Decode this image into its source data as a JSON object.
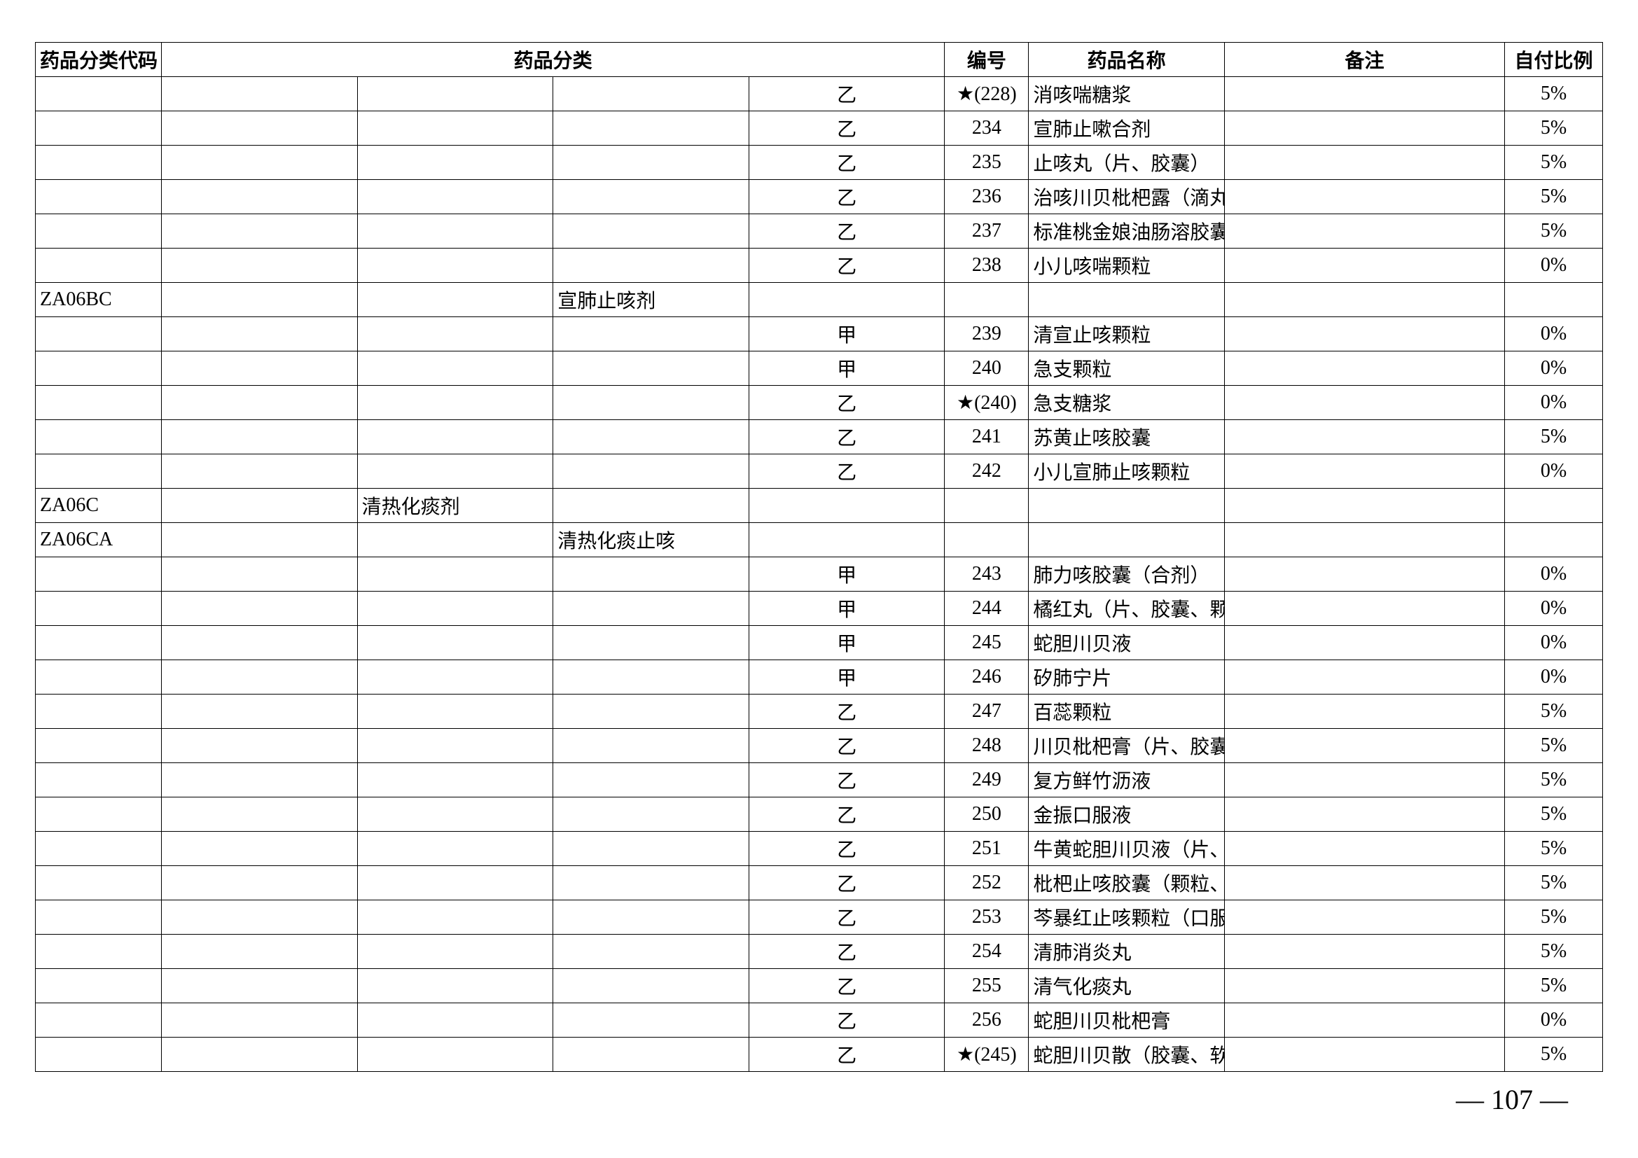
{
  "headers": {
    "code": "药品分类代码",
    "category": "药品分类",
    "number": "编号",
    "name": "药品名称",
    "note": "备注",
    "ratio": "自付比例"
  },
  "rows": [
    {
      "code": "",
      "cat1": "",
      "cat2": "",
      "cat3": "",
      "cat4": "乙",
      "num": "★(228)",
      "name": "消咳喘糖浆",
      "note": "",
      "ratio": "5%"
    },
    {
      "code": "",
      "cat1": "",
      "cat2": "",
      "cat3": "",
      "cat4": "乙",
      "num": "234",
      "name": "宣肺止嗽合剂",
      "note": "",
      "ratio": "5%"
    },
    {
      "code": "",
      "cat1": "",
      "cat2": "",
      "cat3": "",
      "cat4": "乙",
      "num": "235",
      "name": "止咳丸（片、胶囊）",
      "note": "",
      "ratio": "5%"
    },
    {
      "code": "",
      "cat1": "",
      "cat2": "",
      "cat3": "",
      "cat4": "乙",
      "num": "236",
      "name": "治咳川贝枇杷露（滴丸）",
      "note": "",
      "ratio": "5%"
    },
    {
      "code": "",
      "cat1": "",
      "cat2": "",
      "cat3": "",
      "cat4": "乙",
      "num": "237",
      "name": "标准桃金娘油肠溶胶囊",
      "note": "",
      "ratio": "5%"
    },
    {
      "code": "",
      "cat1": "",
      "cat2": "",
      "cat3": "",
      "cat4": "乙",
      "num": "238",
      "name": "小儿咳喘颗粒",
      "note": "",
      "ratio": "0%"
    },
    {
      "code": "ZA06BC",
      "cat1": "",
      "cat2": "",
      "cat3": "宣肺止咳剂",
      "cat4": "",
      "num": "",
      "name": "",
      "note": "",
      "ratio": ""
    },
    {
      "code": "",
      "cat1": "",
      "cat2": "",
      "cat3": "",
      "cat4": "甲",
      "num": "239",
      "name": "清宣止咳颗粒",
      "note": "",
      "ratio": "0%"
    },
    {
      "code": "",
      "cat1": "",
      "cat2": "",
      "cat3": "",
      "cat4": "甲",
      "num": "240",
      "name": "急支颗粒",
      "note": "",
      "ratio": "0%"
    },
    {
      "code": "",
      "cat1": "",
      "cat2": "",
      "cat3": "",
      "cat4": "乙",
      "num": "★(240)",
      "name": "急支糖浆",
      "note": "",
      "ratio": "0%"
    },
    {
      "code": "",
      "cat1": "",
      "cat2": "",
      "cat3": "",
      "cat4": "乙",
      "num": "241",
      "name": "苏黄止咳胶囊",
      "note": "",
      "ratio": "5%"
    },
    {
      "code": "",
      "cat1": "",
      "cat2": "",
      "cat3": "",
      "cat4": "乙",
      "num": "242",
      "name": "小儿宣肺止咳颗粒",
      "note": "",
      "ratio": "0%"
    },
    {
      "code": "ZA06C",
      "cat1": "",
      "cat2": "清热化痰剂",
      "cat3": "",
      "cat4": "",
      "num": "",
      "name": "",
      "note": "",
      "ratio": ""
    },
    {
      "code": "ZA06CA",
      "cat1": "",
      "cat2": "",
      "cat3": "清热化痰止咳",
      "cat4": "",
      "num": "",
      "name": "",
      "note": "",
      "ratio": ""
    },
    {
      "code": "",
      "cat1": "",
      "cat2": "",
      "cat3": "",
      "cat4": "甲",
      "num": "243",
      "name": "肺力咳胶囊（合剂）",
      "note": "",
      "ratio": "0%"
    },
    {
      "code": "",
      "cat1": "",
      "cat2": "",
      "cat3": "",
      "cat4": "甲",
      "num": "244",
      "name": "橘红丸（片、胶囊、颗粒）",
      "note": "",
      "ratio": "0%"
    },
    {
      "code": "",
      "cat1": "",
      "cat2": "",
      "cat3": "",
      "cat4": "甲",
      "num": "245",
      "name": "蛇胆川贝液",
      "note": "",
      "ratio": "0%"
    },
    {
      "code": "",
      "cat1": "",
      "cat2": "",
      "cat3": "",
      "cat4": "甲",
      "num": "246",
      "name": "矽肺宁片",
      "note": "",
      "ratio": "0%"
    },
    {
      "code": "",
      "cat1": "",
      "cat2": "",
      "cat3": "",
      "cat4": "乙",
      "num": "247",
      "name": "百蕊颗粒",
      "note": "",
      "ratio": "5%"
    },
    {
      "code": "",
      "cat1": "",
      "cat2": "",
      "cat3": "",
      "cat4": "乙",
      "num": "248",
      "name": "川贝枇杷膏（片、胶囊、颗粒、糖浆）",
      "note": "",
      "ratio": "5%"
    },
    {
      "code": "",
      "cat1": "",
      "cat2": "",
      "cat3": "",
      "cat4": "乙",
      "num": "249",
      "name": "复方鲜竹沥液",
      "note": "",
      "ratio": "5%"
    },
    {
      "code": "",
      "cat1": "",
      "cat2": "",
      "cat3": "",
      "cat4": "乙",
      "num": "250",
      "name": "金振口服液",
      "note": "",
      "ratio": "5%"
    },
    {
      "code": "",
      "cat1": "",
      "cat2": "",
      "cat3": "",
      "cat4": "乙",
      "num": "251",
      "name": "牛黄蛇胆川贝液（片、胶囊、散、滴丸）",
      "note": "",
      "ratio": "5%"
    },
    {
      "code": "",
      "cat1": "",
      "cat2": "",
      "cat3": "",
      "cat4": "乙",
      "num": "252",
      "name": "枇杷止咳胶囊（颗粒、软胶囊）",
      "note": "",
      "ratio": "5%"
    },
    {
      "code": "",
      "cat1": "",
      "cat2": "",
      "cat3": "",
      "cat4": "乙",
      "num": "253",
      "name": "芩暴红止咳颗粒（口服液）",
      "note": "",
      "ratio": "5%"
    },
    {
      "code": "",
      "cat1": "",
      "cat2": "",
      "cat3": "",
      "cat4": "乙",
      "num": "254",
      "name": "清肺消炎丸",
      "note": "",
      "ratio": "5%"
    },
    {
      "code": "",
      "cat1": "",
      "cat2": "",
      "cat3": "",
      "cat4": "乙",
      "num": "255",
      "name": "清气化痰丸",
      "note": "",
      "ratio": "5%"
    },
    {
      "code": "",
      "cat1": "",
      "cat2": "",
      "cat3": "",
      "cat4": "乙",
      "num": "256",
      "name": "蛇胆川贝枇杷膏",
      "note": "",
      "ratio": "0%"
    },
    {
      "code": "",
      "cat1": "",
      "cat2": "",
      "cat3": "",
      "cat4": "乙",
      "num": "★(245)",
      "name": "蛇胆川贝散（胶囊、软胶囊）",
      "note": "",
      "ratio": "5%"
    }
  ],
  "pageNumber": "— 107 —"
}
